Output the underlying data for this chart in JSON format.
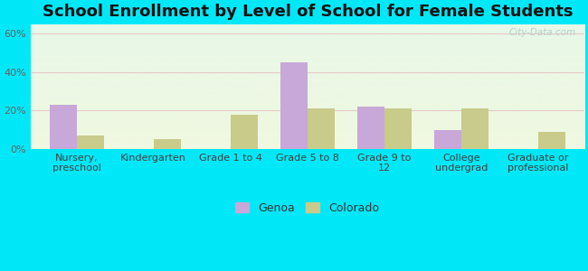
{
  "title": "School Enrollment by Level of School for Female Students",
  "categories": [
    "Nursery,\npreschool",
    "Kindergarten",
    "Grade 1 to 4",
    "Grade 5 to 8",
    "Grade 9 to\n12",
    "College\nundergrad",
    "Graduate or\nprofessional"
  ],
  "genoa_values": [
    23,
    0,
    0,
    45,
    22,
    10,
    0
  ],
  "colorado_values": [
    7,
    5,
    18,
    21,
    21,
    21,
    9
  ],
  "genoa_color": "#c8a8d8",
  "colorado_color": "#c8cb8a",
  "bar_width": 0.35,
  "ylim": [
    0,
    65
  ],
  "yticks": [
    0,
    20,
    40,
    60
  ],
  "ytick_labels": [
    "0%",
    "20%",
    "40%",
    "60%"
  ],
  "outer_bg": "#00e8f8",
  "plot_bg_top": "#e8f8e8",
  "plot_bg_bottom": "#f0f8e0",
  "title_fontsize": 13,
  "tick_fontsize": 8,
  "legend_labels": [
    "Genoa",
    "Colorado"
  ],
  "watermark": "City-Data.com",
  "grid_color": "#e8c8c8",
  "ytick_color": "#606060",
  "xtick_color": "#404040"
}
